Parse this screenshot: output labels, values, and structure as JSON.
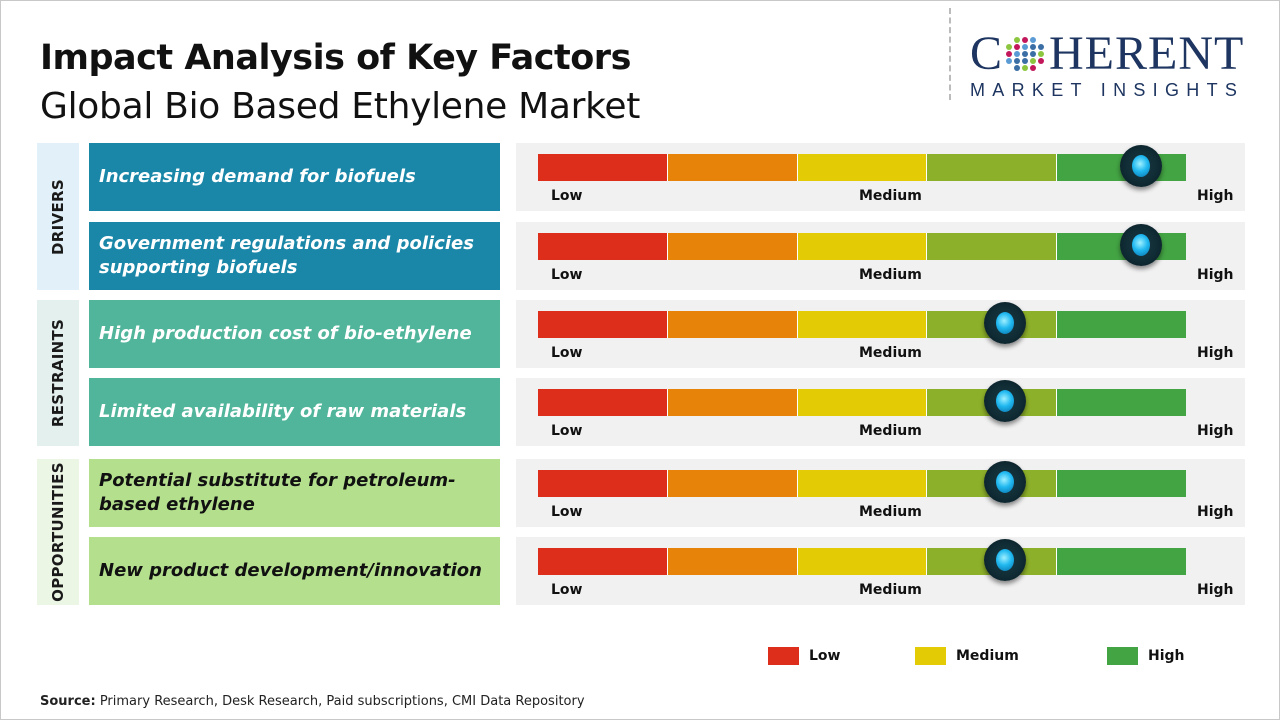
{
  "header": {
    "title": "Impact Analysis of Key Factors",
    "subtitle": "Global Bio Based Ethylene Market"
  },
  "logo": {
    "line1_a": "C",
    "line1_b": "HERENT",
    "line2": "MARKET INSIGHTS"
  },
  "scale": {
    "low": "Low",
    "medium": "Medium",
    "high": "High",
    "segment_colors": [
      "#dc2e1a",
      "#e8830a",
      "#e3cb05",
      "#8db02a",
      "#43a443"
    ]
  },
  "categories": [
    {
      "label": "DRIVERS",
      "bg": "#e1f0f9",
      "box": "#1a87a8",
      "text": "#ffffff"
    },
    {
      "label": "RESTRAINTS",
      "bg": "#e3f0ee",
      "box": "#50b59a",
      "text": "#ffffff"
    },
    {
      "label": "OPPORTUNITIES",
      "bg": "#ecf6e4",
      "box": "#b4e08e",
      "text": "#111111"
    }
  ],
  "chart_data": {
    "type": "gauge",
    "scale_labels": [
      "Low",
      "Medium",
      "High"
    ],
    "factors": [
      {
        "category": "DRIVERS",
        "label": "Increasing demand for biofuels",
        "impact": 0.93
      },
      {
        "category": "DRIVERS",
        "label": "Government regulations and policies supporting biofuels",
        "impact": 0.93
      },
      {
        "category": "RESTRAINTS",
        "label": "High production cost of bio-ethylene",
        "impact": 0.72
      },
      {
        "category": "RESTRAINTS",
        "label": "Limited availability of raw materials",
        "impact": 0.72
      },
      {
        "category": "OPPORTUNITIES",
        "label": "Potential substitute for petroleum-based ethylene",
        "impact": 0.72
      },
      {
        "category": "OPPORTUNITIES",
        "label": "New product development/innovation",
        "impact": 0.72
      }
    ],
    "legend": [
      {
        "label": "Low",
        "color": "#dc2e1a"
      },
      {
        "label": "Medium",
        "color": "#e3cb05"
      },
      {
        "label": "High",
        "color": "#43a443"
      }
    ]
  },
  "source": {
    "prefix": "Source:",
    "text": " Primary Research, Desk Research, Paid subscriptions, CMI Data Repository"
  }
}
